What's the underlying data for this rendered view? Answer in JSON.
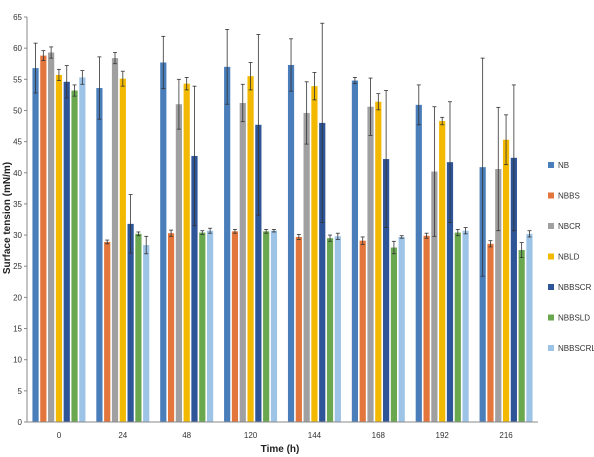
{
  "chart_data": {
    "type": "bar",
    "title": "",
    "xlabel": "Time (h)",
    "ylabel": "Surface tension (mN/m)",
    "ylim": [
      0,
      65
    ],
    "ytick_step": 5,
    "grid": false,
    "legend_position": "right",
    "categories": [
      "0",
      "24",
      "48",
      "120",
      "144",
      "168",
      "192",
      "216"
    ],
    "series": [
      {
        "name": "NB",
        "color": "#4a7ebb",
        "values": [
          56.8,
          53.6,
          57.7,
          57.0,
          57.3,
          54.8,
          50.9,
          40.9
        ],
        "errors": [
          4.0,
          5.0,
          4.2,
          6.0,
          4.2,
          0.5,
          3.2,
          17.5
        ]
      },
      {
        "name": "NBBS",
        "color": "#e3763c",
        "values": [
          58.8,
          28.9,
          30.3,
          30.6,
          29.7,
          29.1,
          29.9,
          28.6
        ],
        "errors": [
          0.8,
          0.3,
          0.5,
          0.3,
          0.4,
          0.6,
          0.4,
          0.5
        ]
      },
      {
        "name": "NBCR",
        "color": "#a0a0a0",
        "values": [
          59.3,
          58.4,
          51.0,
          51.2,
          49.6,
          50.6,
          40.2,
          40.6
        ],
        "errors": [
          0.9,
          0.9,
          4.0,
          3.0,
          5.0,
          4.6,
          10.4,
          9.9
        ]
      },
      {
        "name": "NBLD",
        "color": "#f2b900",
        "values": [
          55.7,
          55.1,
          54.3,
          55.5,
          53.9,
          51.4,
          48.3,
          45.3
        ],
        "errors": [
          0.9,
          1.2,
          1.0,
          2.2,
          2.2,
          1.3,
          0.6,
          4.0
        ]
      },
      {
        "name": "NBBSCR",
        "color": "#2e5597",
        "values": [
          54.6,
          31.8,
          42.7,
          47.7,
          48.0,
          42.2,
          41.7,
          42.4
        ],
        "errors": [
          2.6,
          4.7,
          11.2,
          14.5,
          16.0,
          11.0,
          9.7,
          11.7
        ]
      },
      {
        "name": "NBBSLD",
        "color": "#6aa84f",
        "values": [
          53.2,
          30.2,
          30.4,
          30.6,
          29.5,
          28.0,
          30.4,
          27.6
        ],
        "errors": [
          0.9,
          0.3,
          0.3,
          0.3,
          0.5,
          1.0,
          0.5,
          1.2
        ]
      },
      {
        "name": "NBBSCRLD",
        "color": "#9dc3e6",
        "values": [
          55.3,
          28.4,
          30.7,
          30.7,
          29.8,
          29.7,
          30.7,
          30.2
        ],
        "errors": [
          1.1,
          1.4,
          0.4,
          0.2,
          0.5,
          0.2,
          0.5,
          0.5
        ]
      }
    ]
  }
}
